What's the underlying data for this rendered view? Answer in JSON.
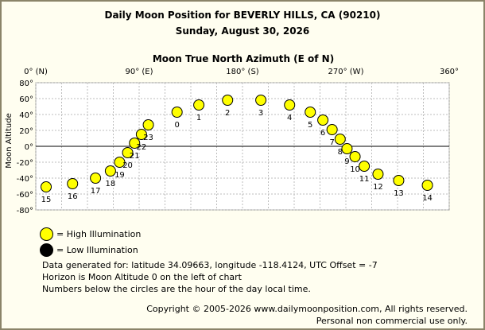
{
  "header": {
    "title": "Daily Moon Position for BEVERLY HILLS, CA (90210)",
    "date": "Sunday, August 30, 2026"
  },
  "chart_data": {
    "type": "scatter",
    "title": "Moon True North Azimuth (E of N)",
    "ylabel": "Moon Altitude",
    "xlim": [
      0,
      360
    ],
    "ylim": [
      -80,
      80
    ],
    "x_ticks": [
      {
        "value": 0,
        "label": "0° (N)"
      },
      {
        "value": 90,
        "label": "90° (E)"
      },
      {
        "value": 180,
        "label": "180° (S)"
      },
      {
        "value": 270,
        "label": "270° (W)"
      },
      {
        "value": 360,
        "label": "360°"
      }
    ],
    "y_ticks": [
      {
        "value": 80,
        "label": "80°"
      },
      {
        "value": 60,
        "label": "60°"
      },
      {
        "value": 40,
        "label": "40°"
      },
      {
        "value": 20,
        "label": "20°"
      },
      {
        "value": 0,
        "label": "0°"
      },
      {
        "value": -20,
        "label": "-20°"
      },
      {
        "value": -40,
        "label": "-40°"
      },
      {
        "value": -60,
        "label": "-60°"
      },
      {
        "value": -80,
        "label": "-80°"
      }
    ],
    "grid": true,
    "illumination_color": "#ffff00",
    "points": [
      {
        "hour": "0",
        "azimuth": 123,
        "altitude": 43
      },
      {
        "hour": "1",
        "azimuth": 142,
        "altitude": 52
      },
      {
        "hour": "2",
        "azimuth": 167,
        "altitude": 58
      },
      {
        "hour": "3",
        "azimuth": 196,
        "altitude": 58
      },
      {
        "hour": "4",
        "azimuth": 221,
        "altitude": 52
      },
      {
        "hour": "5",
        "azimuth": 239,
        "altitude": 43
      },
      {
        "hour": "6",
        "azimuth": 250,
        "altitude": 33
      },
      {
        "hour": "7",
        "azimuth": 258,
        "altitude": 21
      },
      {
        "hour": "8",
        "azimuth": 265,
        "altitude": 9
      },
      {
        "hour": "9",
        "azimuth": 271,
        "altitude": -3
      },
      {
        "hour": "10",
        "azimuth": 278,
        "altitude": -13
      },
      {
        "hour": "11",
        "azimuth": 286,
        "altitude": -25
      },
      {
        "hour": "12",
        "azimuth": 298,
        "altitude": -35
      },
      {
        "hour": "13",
        "azimuth": 316,
        "altitude": -43
      },
      {
        "hour": "14",
        "azimuth": 341,
        "altitude": -49
      },
      {
        "hour": "15",
        "azimuth": 9,
        "altitude": -51
      },
      {
        "hour": "16",
        "azimuth": 32,
        "altitude": -47
      },
      {
        "hour": "17",
        "azimuth": 52,
        "altitude": -40
      },
      {
        "hour": "18",
        "azimuth": 65,
        "altitude": -31
      },
      {
        "hour": "19",
        "azimuth": 73,
        "altitude": -20
      },
      {
        "hour": "20",
        "azimuth": 80,
        "altitude": -8
      },
      {
        "hour": "21",
        "azimuth": 86,
        "altitude": 4
      },
      {
        "hour": "22",
        "azimuth": 92,
        "altitude": 15
      },
      {
        "hour": "23",
        "azimuth": 98,
        "altitude": 27
      }
    ]
  },
  "legend": {
    "high_label": "= High Illumination",
    "low_label": "= Low Illumination",
    "high_color": "#ffff00",
    "low_color": "#000000"
  },
  "info": {
    "line1": "Data generated for: latitude 34.09663, longitude -118.4124, UTC Offset = -7",
    "line2": "Horizon is Moon Altitude 0 on the left of chart",
    "line3": "Numbers below the circles are the hour of the day local time."
  },
  "footer": {
    "copyright": "Copyright © 2005-2026 www.dailymoonposition.com, All rights reserved.",
    "notice": "Personal non commercial use only."
  }
}
